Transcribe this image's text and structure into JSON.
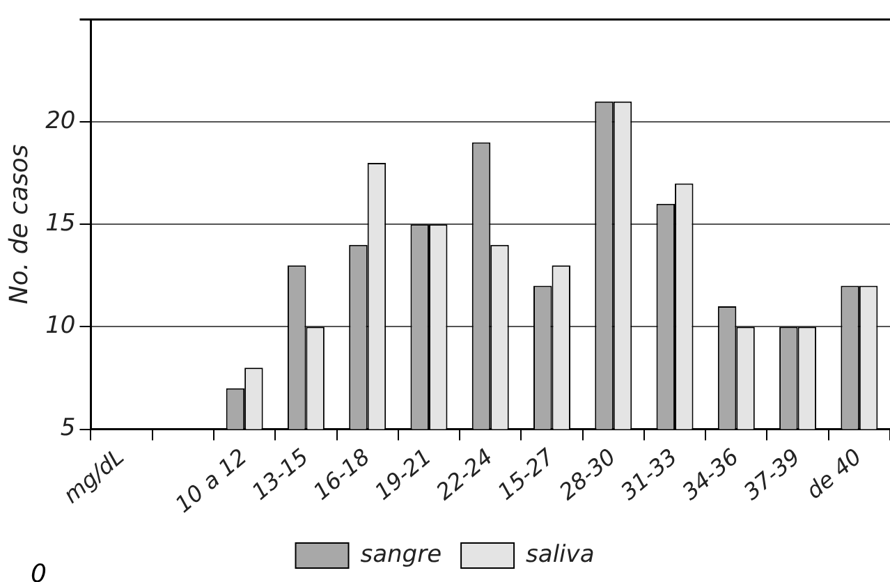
{
  "chart_data": {
    "type": "bar",
    "ylabel": "No. de casos",
    "categories": [
      "mg/dL",
      null,
      "10 a 12",
      "13-15",
      "16-18",
      "19-21",
      "22-24",
      "15-27",
      "28-30",
      "31-33",
      "34-36",
      "37-39",
      "de 40"
    ],
    "series": [
      {
        "name": "sangre",
        "color": "#a8a8a8",
        "values": [
          null,
          null,
          7,
          13,
          14,
          15,
          19,
          12,
          21,
          16,
          11,
          10,
          12
        ]
      },
      {
        "name": "saliva",
        "color": "#e4e4e4",
        "values": [
          null,
          null,
          8,
          10,
          18,
          15,
          14,
          13,
          21,
          17,
          10,
          10,
          12
        ]
      }
    ],
    "ylim": [
      5,
      25
    ],
    "yticks": [
      5,
      10,
      15,
      20
    ],
    "grid": "y",
    "legend": "bottom",
    "annotations": [
      "0"
    ]
  }
}
